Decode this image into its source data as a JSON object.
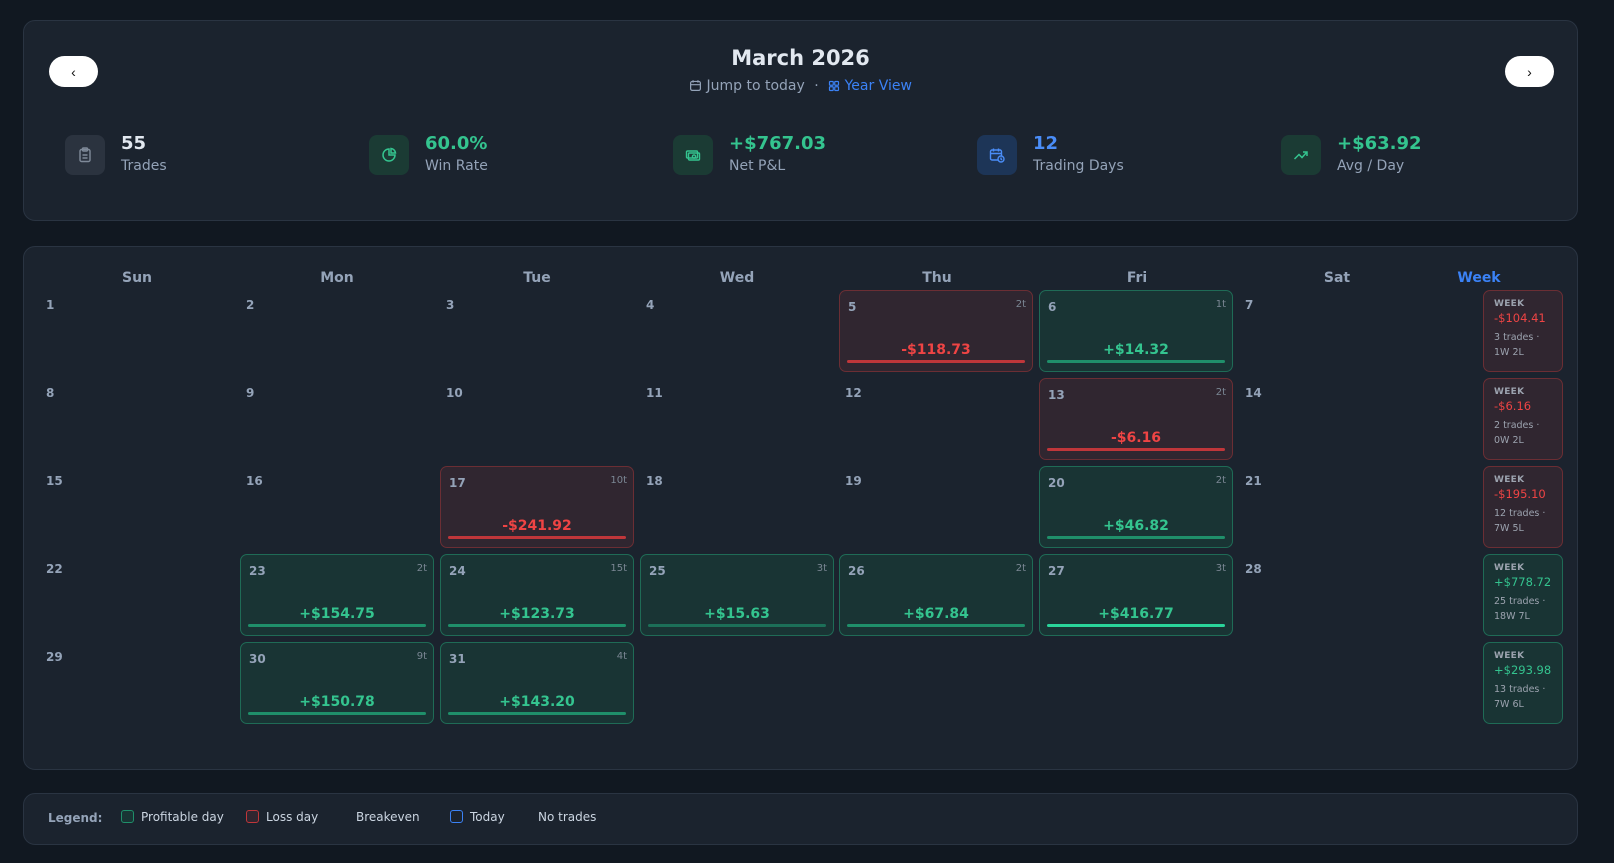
{
  "header": {
    "title": "March 2026",
    "jump_label": "Jump to today",
    "separator": "·",
    "year_view_label": "Year View",
    "prev_label": "‹",
    "next_label": "›"
  },
  "stats": [
    {
      "value": "55",
      "label": "Trades",
      "color": "#e2e8f0",
      "icon": "clipboard-icon"
    },
    {
      "value": "60.0%",
      "label": "Win Rate",
      "color": "#34c48f",
      "icon": "pie-chart-icon"
    },
    {
      "value": "+$767.03",
      "label": "Net P&L",
      "color": "#34c48f",
      "icon": "cash-icon"
    },
    {
      "value": "12",
      "label": "Trading Days",
      "color": "#4a8df8",
      "icon": "calendar-clock-icon"
    },
    {
      "value": "+$63.92",
      "label": "Avg / Day",
      "color": "#34c48f",
      "icon": "trend-up-icon"
    }
  ],
  "weekdays": [
    "Sun",
    "Mon",
    "Tue",
    "Wed",
    "Thu",
    "Fri",
    "Sat",
    "Week"
  ],
  "weeks": [
    {
      "days": [
        {
          "d": "1"
        },
        {
          "d": "2"
        },
        {
          "d": "3"
        },
        {
          "d": "4"
        },
        {
          "d": "5",
          "t": "2t",
          "pnl": "-$118.73",
          "k": "l"
        },
        {
          "d": "6",
          "t": "1t",
          "pnl": "+$14.32",
          "k": "p"
        },
        {
          "d": "7"
        }
      ],
      "summary": {
        "head": "WEEK",
        "pnl": "-$104.41",
        "trades": "3 trades ·",
        "wl": "1W 2L",
        "k": "l"
      }
    },
    {
      "days": [
        {
          "d": "8"
        },
        {
          "d": "9"
        },
        {
          "d": "10"
        },
        {
          "d": "11"
        },
        {
          "d": "12"
        },
        {
          "d": "13",
          "t": "2t",
          "pnl": "-$6.16",
          "k": "l"
        },
        {
          "d": "14"
        }
      ],
      "summary": {
        "head": "WEEK",
        "pnl": "-$6.16",
        "trades": "2 trades ·",
        "wl": "0W 2L",
        "k": "l"
      }
    },
    {
      "days": [
        {
          "d": "15"
        },
        {
          "d": "16"
        },
        {
          "d": "17",
          "t": "10t",
          "pnl": "-$241.92",
          "k": "l"
        },
        {
          "d": "18"
        },
        {
          "d": "19"
        },
        {
          "d": "20",
          "t": "2t",
          "pnl": "+$46.82",
          "k": "p"
        },
        {
          "d": "21"
        }
      ],
      "summary": {
        "head": "WEEK",
        "pnl": "-$195.10",
        "trades": "12 trades ·",
        "wl": "7W 5L",
        "k": "l"
      }
    },
    {
      "days": [
        {
          "d": "22"
        },
        {
          "d": "23",
          "t": "2t",
          "pnl": "+$154.75",
          "k": "p"
        },
        {
          "d": "24",
          "t": "15t",
          "pnl": "+$123.73",
          "k": "p"
        },
        {
          "d": "25",
          "t": "3t",
          "pnl": "+$15.63",
          "k": "p"
        },
        {
          "d": "26",
          "t": "2t",
          "pnl": "+$67.84",
          "k": "p"
        },
        {
          "d": "27",
          "t": "3t",
          "pnl": "+$416.77",
          "k": "p"
        },
        {
          "d": "28"
        }
      ],
      "summary": {
        "head": "WEEK",
        "pnl": "+$778.72",
        "trades": "25 trades ·",
        "wl": "18W 7L",
        "k": "p"
      }
    },
    {
      "days": [
        {
          "d": "29"
        },
        {
          "d": "30",
          "t": "9t",
          "pnl": "+$150.78",
          "k": "p"
        },
        {
          "d": "31",
          "t": "4t",
          "pnl": "+$143.20",
          "k": "p"
        },
        {},
        {},
        {},
        {}
      ],
      "summary": {
        "head": "WEEK",
        "pnl": "+$293.98",
        "trades": "13 trades ·",
        "wl": "7W 6L",
        "k": "p"
      }
    }
  ],
  "legend": {
    "title": "Legend:",
    "items": [
      "Profitable day",
      "Loss day",
      "Breakeven",
      "Today",
      "No trades"
    ]
  },
  "colors": {
    "profit": "#34c48f",
    "loss": "#ef4444",
    "accent": "#3b82f6"
  }
}
